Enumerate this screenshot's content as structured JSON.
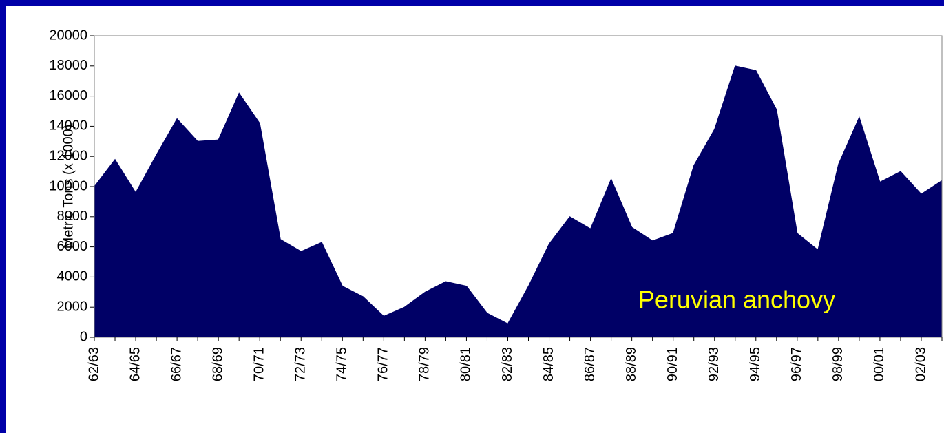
{
  "chart_data": {
    "type": "area",
    "categories": [
      "62/63",
      null,
      "64/65",
      null,
      "66/67",
      null,
      "68/69",
      null,
      "70/71",
      null,
      "72/73",
      null,
      "74/75",
      null,
      "76/77",
      null,
      "78/79",
      null,
      "80/81",
      null,
      "82/83",
      null,
      "84/85",
      null,
      "86/87",
      null,
      "88/89",
      null,
      "90/91",
      null,
      "92/93",
      null,
      "94/95",
      null,
      "96/97",
      null,
      "98/99",
      null,
      "00/01",
      null,
      "02/03",
      null
    ],
    "values": [
      10000,
      11800,
      9600,
      12100,
      14500,
      13000,
      13100,
      16200,
      14200,
      6500,
      5700,
      6300,
      3400,
      2700,
      1400,
      2000,
      3000,
      3700,
      3400,
      1600,
      900,
      3400,
      6200,
      8000,
      7200,
      10500,
      7300,
      6400,
      6900,
      11400,
      13800,
      18000,
      17700,
      15100,
      6900,
      5800,
      11500,
      14600,
      10300,
      11000,
      9500,
      10400
    ],
    "color": "#000066",
    "y_label": "Metric Tons (x 1000)",
    "annotation": "Peruvian anchovy",
    "annotation_color": "#ffff00",
    "ylim": [
      0,
      20000
    ],
    "yticks": [
      0,
      2000,
      4000,
      6000,
      8000,
      10000,
      12000,
      14000,
      16000,
      18000,
      20000
    ]
  }
}
